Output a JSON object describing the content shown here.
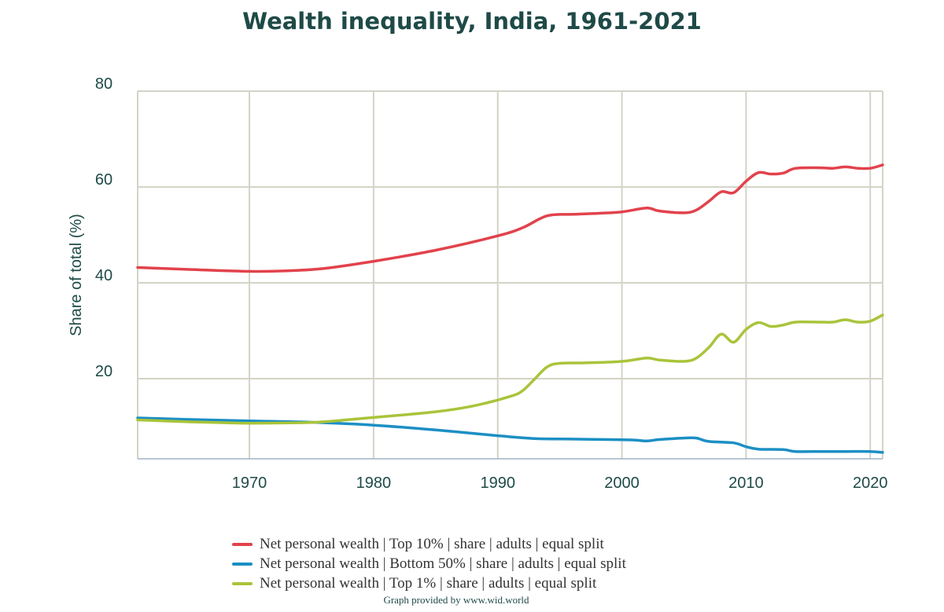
{
  "chart_data": {
    "type": "line",
    "title": "Wealth inequality, India, 1961-2021",
    "ylabel": "Share of total (%)",
    "xlabel": "",
    "xlim": [
      1961,
      2021
    ],
    "ylim": [
      3,
      80
    ],
    "x_ticks": [
      1970,
      1980,
      1990,
      2000,
      2010,
      2020
    ],
    "y_ticks": [
      20,
      40,
      60,
      80
    ],
    "grid": true,
    "legend_position": "bottom",
    "series": [
      {
        "name": "Net personal wealth | Top 10% | share | adults | equal split",
        "color": "#e2424c",
        "points": [
          [
            1961,
            43.2
          ],
          [
            1965,
            42.8
          ],
          [
            1970,
            42.4
          ],
          [
            1973,
            42.5
          ],
          [
            1976,
            43.0
          ],
          [
            1980,
            44.5
          ],
          [
            1985,
            46.8
          ],
          [
            1990,
            49.8
          ],
          [
            1992,
            51.5
          ],
          [
            1994,
            54.0
          ],
          [
            1996,
            54.3
          ],
          [
            1998,
            54.5
          ],
          [
            2000,
            54.8
          ],
          [
            2002,
            55.6
          ],
          [
            2003,
            55.0
          ],
          [
            2005,
            54.6
          ],
          [
            2006,
            55.2
          ],
          [
            2007,
            57.0
          ],
          [
            2008,
            59.0
          ],
          [
            2009,
            58.8
          ],
          [
            2010,
            61.2
          ],
          [
            2011,
            63.0
          ],
          [
            2012,
            62.7
          ],
          [
            2013,
            62.9
          ],
          [
            2014,
            63.9
          ],
          [
            2016,
            64.0
          ],
          [
            2017,
            63.9
          ],
          [
            2018,
            64.2
          ],
          [
            2019,
            63.9
          ],
          [
            2020,
            63.9
          ],
          [
            2021,
            64.6
          ]
        ]
      },
      {
        "name": "Net personal wealth | Bottom 50% | share | adults | equal split",
        "color": "#1c8fc4",
        "points": [
          [
            1961,
            11.8
          ],
          [
            1965,
            11.5
          ],
          [
            1970,
            11.2
          ],
          [
            1975,
            10.9
          ],
          [
            1980,
            10.3
          ],
          [
            1985,
            9.3
          ],
          [
            1990,
            8.1
          ],
          [
            1993,
            7.5
          ],
          [
            1996,
            7.4
          ],
          [
            1999,
            7.3
          ],
          [
            2001,
            7.2
          ],
          [
            2002,
            7.0
          ],
          [
            2003,
            7.3
          ],
          [
            2005,
            7.6
          ],
          [
            2006,
            7.6
          ],
          [
            2007,
            6.9
          ],
          [
            2009,
            6.6
          ],
          [
            2010,
            5.8
          ],
          [
            2011,
            5.3
          ],
          [
            2013,
            5.2
          ],
          [
            2014,
            4.8
          ],
          [
            2016,
            4.8
          ],
          [
            2018,
            4.8
          ],
          [
            2020,
            4.8
          ],
          [
            2021,
            4.6
          ]
        ]
      },
      {
        "name": "Net personal wealth | Top 1% | share | adults | equal split",
        "color": "#a9c43a",
        "points": [
          [
            1961,
            11.4
          ],
          [
            1965,
            11.0
          ],
          [
            1968,
            10.8
          ],
          [
            1970,
            10.7
          ],
          [
            1974,
            10.8
          ],
          [
            1976,
            11.0
          ],
          [
            1980,
            11.9
          ],
          [
            1985,
            13.1
          ],
          [
            1988,
            14.3
          ],
          [
            1991,
            16.3
          ],
          [
            1992,
            17.5
          ],
          [
            1993,
            20.0
          ],
          [
            1994,
            22.5
          ],
          [
            1995,
            23.2
          ],
          [
            1997,
            23.3
          ],
          [
            2000,
            23.6
          ],
          [
            2002,
            24.3
          ],
          [
            2003,
            23.9
          ],
          [
            2005,
            23.6
          ],
          [
            2006,
            24.3
          ],
          [
            2007,
            26.5
          ],
          [
            2008,
            29.3
          ],
          [
            2009,
            27.6
          ],
          [
            2010,
            30.3
          ],
          [
            2011,
            31.7
          ],
          [
            2012,
            30.9
          ],
          [
            2013,
            31.2
          ],
          [
            2014,
            31.8
          ],
          [
            2016,
            31.8
          ],
          [
            2017,
            31.8
          ],
          [
            2018,
            32.3
          ],
          [
            2019,
            31.8
          ],
          [
            2020,
            32.0
          ],
          [
            2021,
            33.3
          ]
        ]
      }
    ]
  },
  "credit": "Graph provided by www.wid.world"
}
